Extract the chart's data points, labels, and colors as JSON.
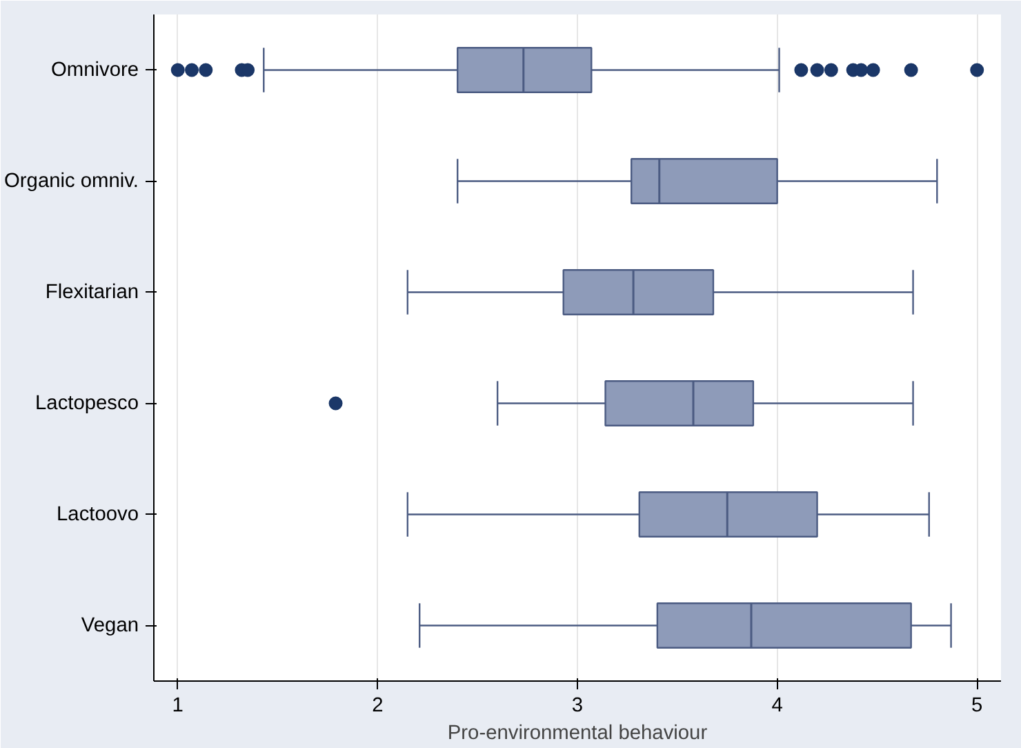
{
  "chart_data": {
    "type": "box",
    "orientation": "horizontal",
    "xlabel": "Pro-environmental behaviour",
    "categories": [
      "Omnivore",
      "Organic omniv.",
      "Flexitarian",
      "Lactopesco",
      "Lactoovo",
      "Vegan"
    ],
    "boxes": [
      {
        "low": 1.43,
        "q1": 2.4,
        "median": 2.73,
        "q3": 3.07,
        "high": 4.01,
        "outliers": [
          1.0,
          1.07,
          1.14,
          1.32,
          1.35,
          4.12,
          4.2,
          4.27,
          4.38,
          4.42,
          4.48,
          4.67,
          5.0
        ]
      },
      {
        "low": 2.4,
        "q1": 3.27,
        "median": 3.41,
        "q3": 4.0,
        "high": 4.8
      },
      {
        "low": 2.15,
        "q1": 2.93,
        "median": 3.28,
        "q3": 3.68,
        "high": 4.68
      },
      {
        "low": 2.6,
        "q1": 3.14,
        "median": 3.58,
        "q3": 3.88,
        "high": 4.68,
        "outliers": [
          1.79
        ]
      },
      {
        "low": 2.15,
        "q1": 3.31,
        "median": 3.75,
        "q3": 4.2,
        "high": 4.76
      },
      {
        "low": 2.21,
        "q1": 3.4,
        "median": 3.87,
        "q3": 4.67,
        "high": 4.87
      }
    ],
    "color": "#8e9bb9",
    "xlim": [
      0.88,
      5.12
    ],
    "xticks": [
      1,
      2,
      3,
      4,
      5
    ],
    "grid": "x"
  }
}
